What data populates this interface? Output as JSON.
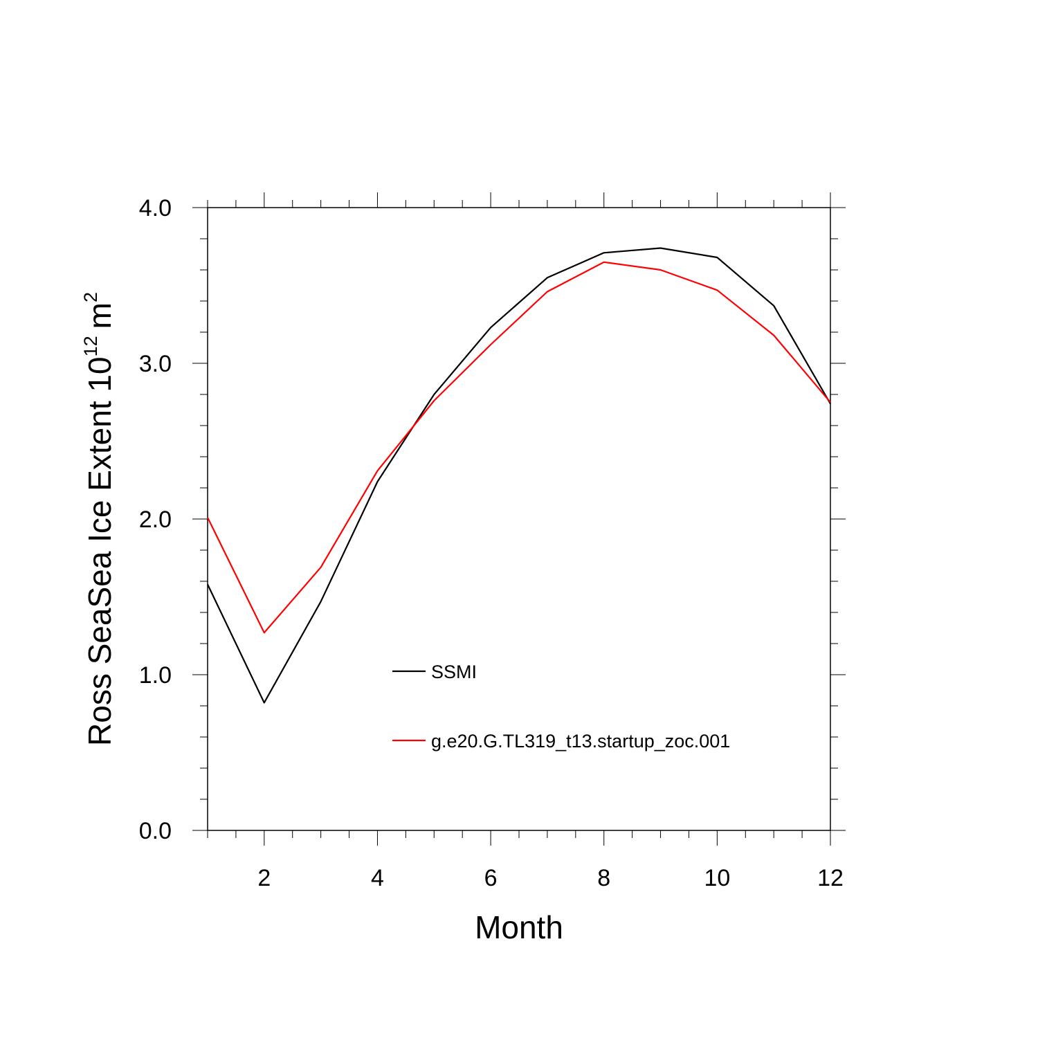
{
  "chart_data": {
    "type": "line",
    "xlabel": "Month",
    "ylabel_main": "Ross SeaSea Ice Extent 10",
    "ylabel_exp": "12",
    "ylabel_unit": "m",
    "ylabel_unit_exp": "2",
    "xlim": [
      1,
      12
    ],
    "ylim": [
      0.0,
      4.0
    ],
    "xticks": [
      2,
      4,
      6,
      8,
      10,
      12
    ],
    "xtick_labels": [
      "2",
      "4",
      "6",
      "8",
      "10",
      "12"
    ],
    "yticks": [
      0.0,
      1.0,
      2.0,
      3.0,
      4.0
    ],
    "ytick_labels": [
      "0.0",
      "1.0",
      "2.0",
      "3.0",
      "4.0"
    ],
    "grid": false,
    "legend_position": "inside-lower-center",
    "x": [
      1,
      2,
      3,
      4,
      5,
      6,
      7,
      8,
      9,
      10,
      11,
      12
    ],
    "series": [
      {
        "name": "SSMI",
        "color": "#000000",
        "values": [
          1.58,
          0.82,
          1.47,
          2.24,
          2.8,
          3.23,
          3.55,
          3.71,
          3.74,
          3.68,
          3.37,
          2.74
        ]
      },
      {
        "name": "g.e20.G.TL319_t13.startup_zoc.001",
        "color": "#ff0000",
        "values": [
          2.01,
          1.27,
          1.69,
          2.31,
          2.76,
          3.12,
          3.46,
          3.65,
          3.6,
          3.47,
          3.18,
          2.75
        ]
      }
    ]
  }
}
